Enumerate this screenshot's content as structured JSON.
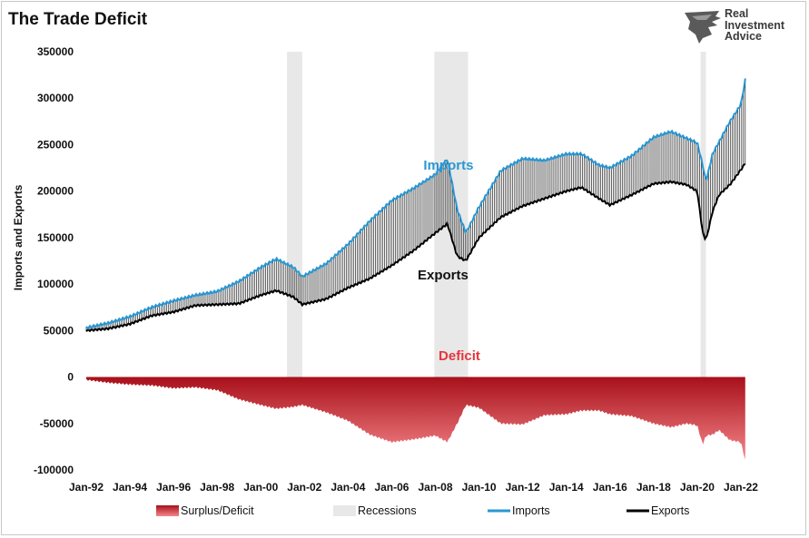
{
  "title": "The Trade Deficit",
  "logo": {
    "line1": "Real",
    "line2": "Investment",
    "line3": "Advice"
  },
  "colors": {
    "imports": "#2a97d3",
    "exports": "#000000",
    "deficit_top": "#a8101a",
    "deficit_bottom": "#f5868a",
    "recession": "#e8e8e8"
  },
  "chart_data": {
    "type": "line",
    "ylabel": "Imports and Exports",
    "ylim": [
      -100000,
      350000
    ],
    "yticks": [
      -100000,
      -50000,
      0,
      50000,
      100000,
      150000,
      200000,
      250000,
      300000,
      350000
    ],
    "ytick_labels": [
      "-100000",
      "-50000",
      "0",
      "50000",
      "100000",
      "150000",
      "200000",
      "250000",
      "300000",
      "350000"
    ],
    "xlim": [
      1992.0,
      2022.5
    ],
    "xtick_years": [
      1992,
      1994,
      1996,
      1998,
      2000,
      2002,
      2004,
      2006,
      2008,
      2010,
      2012,
      2014,
      2016,
      2018,
      2020,
      2022
    ],
    "xtick_labels": [
      "Jan-92",
      "Jan-94",
      "Jan-96",
      "Jan-98",
      "Jan-00",
      "Jan-02",
      "Jan-04",
      "Jan-06",
      "Jan-08",
      "Jan-10",
      "Jan-12",
      "Jan-14",
      "Jan-16",
      "Jan-18",
      "Jan-20",
      "Jan-22"
    ],
    "recessions": [
      [
        2001.2,
        2001.9
      ],
      [
        2007.95,
        2009.5
      ],
      [
        2020.15,
        2020.4
      ]
    ],
    "series": [
      {
        "name": "Imports",
        "x": [
          1992.0,
          1993.0,
          1994.0,
          1995.0,
          1996.0,
          1997.0,
          1998.0,
          1999.0,
          2000.0,
          2000.7,
          2001.5,
          2001.9,
          2003.0,
          2004.0,
          2005.0,
          2006.0,
          2007.0,
          2008.0,
          2008.55,
          2009.0,
          2009.4,
          2010.0,
          2011.0,
          2012.0,
          2013.0,
          2014.0,
          2014.7,
          2015.5,
          2016.0,
          2017.0,
          2018.0,
          2018.8,
          2019.5,
          2020.0,
          2020.25,
          2020.4,
          2020.7,
          2021.0,
          2021.5,
          2022.0,
          2022.2
        ],
        "values": [
          53000,
          58000,
          65000,
          75000,
          82000,
          88000,
          92000,
          103000,
          118000,
          127000,
          118000,
          108000,
          122000,
          143000,
          168000,
          190000,
          203000,
          218000,
          235000,
          180000,
          155000,
          183000,
          222000,
          235000,
          233000,
          240000,
          240000,
          228000,
          225000,
          238000,
          258000,
          264000,
          257000,
          252000,
          228000,
          210000,
          240000,
          253000,
          275000,
          293000,
          320000
        ]
      },
      {
        "name": "Exports",
        "x": [
          1992.0,
          1993.0,
          1994.0,
          1995.0,
          1996.0,
          1997.0,
          1998.0,
          1999.0,
          2000.0,
          2000.7,
          2001.5,
          2001.9,
          2003.0,
          2004.0,
          2005.0,
          2006.0,
          2007.0,
          2008.0,
          2008.55,
          2009.0,
          2009.4,
          2010.0,
          2011.0,
          2012.0,
          2013.0,
          2014.0,
          2014.7,
          2015.5,
          2016.0,
          2017.0,
          2018.0,
          2018.8,
          2019.5,
          2020.0,
          2020.25,
          2020.4,
          2020.7,
          2021.0,
          2021.5,
          2022.0,
          2022.2
        ],
        "values": [
          50000,
          52000,
          57000,
          66000,
          70000,
          77000,
          78000,
          79000,
          88000,
          93000,
          86000,
          78000,
          84000,
          96000,
          106000,
          120000,
          136000,
          155000,
          165000,
          130000,
          125000,
          150000,
          172000,
          184000,
          192000,
          200000,
          204000,
          192000,
          185000,
          196000,
          208000,
          210000,
          207000,
          200000,
          155000,
          147000,
          178000,
          196000,
          207000,
          223000,
          230000
        ]
      },
      {
        "name": "Surplus/Deficit",
        "x": [
          1992.0,
          1993.0,
          1994.0,
          1995.0,
          1996.0,
          1997.0,
          1998.0,
          1999.0,
          2000.0,
          2000.7,
          2001.5,
          2001.9,
          2003.0,
          2004.0,
          2005.0,
          2006.0,
          2007.0,
          2008.0,
          2008.55,
          2009.0,
          2009.4,
          2010.0,
          2011.0,
          2012.0,
          2013.0,
          2014.0,
          2014.7,
          2015.5,
          2016.0,
          2017.0,
          2018.0,
          2018.8,
          2019.5,
          2020.0,
          2020.25,
          2020.4,
          2020.7,
          2021.0,
          2021.5,
          2022.0,
          2022.2
        ],
        "values": [
          -3000,
          -6000,
          -8000,
          -9000,
          -12000,
          -11000,
          -14000,
          -24000,
          -30000,
          -34000,
          -32000,
          -30000,
          -38000,
          -47000,
          -62000,
          -70000,
          -67000,
          -63000,
          -70000,
          -50000,
          -30000,
          -33000,
          -50000,
          -51000,
          -41000,
          -40000,
          -36000,
          -36000,
          -40000,
          -42000,
          -50000,
          -54000,
          -50000,
          -52000,
          -73000,
          -63000,
          -62000,
          -57000,
          -68000,
          -70000,
          -90000
        ]
      }
    ],
    "annotations": [
      {
        "text": "Imports",
        "x": 2008.6,
        "y": 223000,
        "color": "#2a97d3"
      },
      {
        "text": "Exports",
        "x": 2008.35,
        "y": 105000,
        "color": "#111111"
      },
      {
        "text": "Deficit",
        "x": 2009.1,
        "y": 18000,
        "color": "#e8353b"
      }
    ],
    "legend": {
      "position": "bottom",
      "entries": [
        "Surplus/Deficit",
        "Recessions",
        "Imports",
        "Exports"
      ]
    }
  }
}
